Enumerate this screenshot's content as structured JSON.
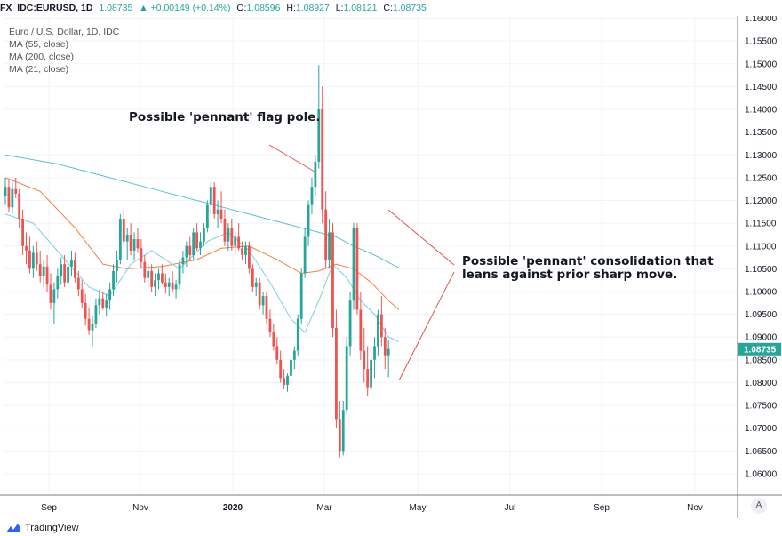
{
  "header": {
    "symbol": "FX_IDC:EURUSD, 1D",
    "last": "1.08735",
    "change": "▲ +0.00149 (+0.14%)",
    "o_label": "O:",
    "o_value": "1.08596",
    "h_label": "H:",
    "h_value": "1.08927",
    "l_label": "L:",
    "l_value": "1.08121",
    "c_label": "C:",
    "c_value": "1.08735"
  },
  "legend": {
    "title": "Euro / U.S. Dollar, 1D, IDC",
    "ma55": "MA (55, close)",
    "ma200": "MA (200, close)",
    "ma21": "MA (21, close)"
  },
  "annotations": {
    "flag_pole": "Possible 'pennant' flag pole.",
    "consolidation": "Possible 'pennant' consolidation that\nleans against prior sharp move."
  },
  "brand": "TradingView",
  "auto_label": "A",
  "colors": {
    "up": "#26a69a",
    "down": "#ef5350",
    "ma55": "#f0803c",
    "ma200": "#5bc0cf",
    "ma21": "#7ecfe0",
    "annotation_line": "#e65050",
    "price_tag": "#26a69a"
  },
  "chart_data": {
    "type": "candlestick",
    "price_axis": {
      "ticks": [
        "1.16000",
        "1.15500",
        "1.15000",
        "1.14500",
        "1.14000",
        "1.13500",
        "1.13000",
        "1.12500",
        "1.12000",
        "1.11500",
        "1.11000",
        "1.10500",
        "1.10000",
        "1.09500",
        "1.09000",
        "1.08500",
        "1.08000",
        "1.07500",
        "1.07000",
        "1.06500",
        "1.06000"
      ],
      "ylim": [
        1.0555,
        1.1605
      ],
      "last_price": "1.08735"
    },
    "time_axis": {
      "labels": [
        "Sep",
        "Nov",
        "2020",
        "Mar",
        "May",
        "Jul",
        "Sep",
        "Nov"
      ],
      "bold": [
        "2020"
      ]
    },
    "candles": [
      [
        1.121,
        1.125,
        1.119,
        1.123
      ],
      [
        1.123,
        1.1245,
        1.1175,
        1.1185
      ],
      [
        1.1185,
        1.124,
        1.117,
        1.1225
      ],
      [
        1.1225,
        1.125,
        1.1205,
        1.1215
      ],
      [
        1.1215,
        1.1225,
        1.114,
        1.116
      ],
      [
        1.116,
        1.118,
        1.108,
        1.11
      ],
      [
        1.11,
        1.113,
        1.106,
        1.109
      ],
      [
        1.109,
        1.112,
        1.104,
        1.105
      ],
      [
        1.105,
        1.11,
        1.103,
        1.1085
      ],
      [
        1.1085,
        1.111,
        1.1045,
        1.106
      ],
      [
        1.106,
        1.109,
        1.102,
        1.1035
      ],
      [
        1.1035,
        1.107,
        1.101,
        1.1055
      ],
      [
        1.1055,
        1.108,
        1.1,
        1.1015
      ],
      [
        1.1015,
        1.104,
        1.096,
        1.0975
      ],
      [
        1.0975,
        1.102,
        1.093,
        1.1005
      ],
      [
        1.1005,
        1.105,
        1.0985,
        1.1035
      ],
      [
        1.1035,
        1.1075,
        1.1015,
        1.106
      ],
      [
        1.106,
        1.108,
        1.101,
        1.102
      ],
      [
        1.102,
        1.107,
        1.1005,
        1.1055
      ],
      [
        1.1055,
        1.109,
        1.1035,
        1.107
      ],
      [
        1.107,
        1.1085,
        1.102,
        1.103
      ],
      [
        1.103,
        1.1045,
        1.099,
        1.1005
      ],
      [
        1.1005,
        1.1025,
        1.0965,
        1.0975
      ],
      [
        1.0975,
        1.0995,
        1.0925,
        1.094
      ],
      [
        1.094,
        1.0965,
        1.0905,
        1.0915
      ],
      [
        1.0915,
        1.0945,
        1.088,
        1.093
      ],
      [
        1.093,
        1.0985,
        1.092,
        1.097
      ],
      [
        1.097,
        1.1005,
        1.095,
        1.0985
      ],
      [
        1.0985,
        1.1,
        1.096,
        1.0965
      ],
      [
        1.0965,
        1.0995,
        1.0945,
        1.098
      ],
      [
        1.098,
        1.102,
        1.096,
        1.1005
      ],
      [
        1.1005,
        1.106,
        1.099,
        1.1045
      ],
      [
        1.1045,
        1.109,
        1.102,
        1.107
      ],
      [
        1.107,
        1.117,
        1.106,
        1.116
      ],
      [
        1.116,
        1.118,
        1.11,
        1.111
      ],
      [
        1.111,
        1.114,
        1.107,
        1.1125
      ],
      [
        1.1125,
        1.115,
        1.108,
        1.109
      ],
      [
        1.109,
        1.113,
        1.107,
        1.1115
      ],
      [
        1.1115,
        1.114,
        1.1085,
        1.1095
      ],
      [
        1.1095,
        1.1115,
        1.105,
        1.1065
      ],
      [
        1.1065,
        1.108,
        1.102,
        1.103
      ],
      [
        1.103,
        1.106,
        1.101,
        1.1045
      ],
      [
        1.1045,
        1.106,
        1.1,
        1.101
      ],
      [
        1.101,
        1.104,
        1.099,
        1.1025
      ],
      [
        1.1025,
        1.105,
        1.1005,
        1.104
      ],
      [
        1.104,
        1.106,
        1.1015,
        1.102
      ],
      [
        1.102,
        1.104,
        1.0995,
        1.101
      ],
      [
        1.101,
        1.103,
        1.099,
        1.102
      ],
      [
        1.102,
        1.1045,
        1.1,
        1.1005
      ],
      [
        1.1005,
        1.1025,
        1.0985,
        1.1015
      ],
      [
        1.1015,
        1.107,
        1.1005,
        1.106
      ],
      [
        1.106,
        1.109,
        1.104,
        1.1075
      ],
      [
        1.1075,
        1.111,
        1.1055,
        1.11
      ],
      [
        1.11,
        1.112,
        1.107,
        1.108
      ],
      [
        1.108,
        1.114,
        1.107,
        1.113
      ],
      [
        1.113,
        1.115,
        1.109,
        1.1095
      ],
      [
        1.1095,
        1.113,
        1.108,
        1.111
      ],
      [
        1.111,
        1.115,
        1.11,
        1.114
      ],
      [
        1.114,
        1.12,
        1.113,
        1.119
      ],
      [
        1.119,
        1.124,
        1.117,
        1.123
      ],
      [
        1.123,
        1.124,
        1.116,
        1.117
      ],
      [
        1.117,
        1.12,
        1.114,
        1.118
      ],
      [
        1.118,
        1.122,
        1.115,
        1.116
      ],
      [
        1.116,
        1.118,
        1.11,
        1.111
      ],
      [
        1.111,
        1.115,
        1.109,
        1.114
      ],
      [
        1.114,
        1.116,
        1.109,
        1.11
      ],
      [
        1.11,
        1.113,
        1.108,
        1.112
      ],
      [
        1.112,
        1.115,
        1.109,
        1.1095
      ],
      [
        1.1095,
        1.111,
        1.107,
        1.108
      ],
      [
        1.108,
        1.111,
        1.106,
        1.11
      ],
      [
        1.11,
        1.111,
        1.104,
        1.105
      ],
      [
        1.105,
        1.106,
        1.1,
        1.101
      ],
      [
        1.101,
        1.103,
        1.099,
        1.102
      ],
      [
        1.102,
        1.103,
        1.096,
        1.097
      ],
      [
        1.097,
        1.1,
        1.095,
        1.099
      ],
      [
        1.099,
        1.1,
        1.093,
        1.094
      ],
      [
        1.094,
        1.096,
        1.09,
        1.091
      ],
      [
        1.091,
        1.093,
        1.087,
        1.088
      ],
      [
        1.088,
        1.09,
        1.084,
        1.085
      ],
      [
        1.085,
        1.087,
        1.08,
        1.081
      ],
      [
        1.081,
        1.083,
        1.0785,
        1.0795
      ],
      [
        1.0795,
        1.082,
        1.078,
        1.0815
      ],
      [
        1.0815,
        1.086,
        1.08,
        1.085
      ],
      [
        1.085,
        1.088,
        1.083,
        1.087
      ],
      [
        1.087,
        1.095,
        1.086,
        1.094
      ],
      [
        1.094,
        1.105,
        1.093,
        1.104
      ],
      [
        1.104,
        1.114,
        1.103,
        1.112
      ],
      [
        1.112,
        1.12,
        1.11,
        1.119
      ],
      [
        1.119,
        1.125,
        1.117,
        1.123
      ],
      [
        1.123,
        1.13,
        1.121,
        1.1285
      ],
      [
        1.1285,
        1.1497,
        1.127,
        1.14
      ],
      [
        1.14,
        1.145,
        1.115,
        1.118
      ],
      [
        1.118,
        1.122,
        1.105,
        1.107
      ],
      [
        1.107,
        1.116,
        1.105,
        1.113
      ],
      [
        1.113,
        1.115,
        1.09,
        1.092
      ],
      [
        1.092,
        1.096,
        1.07,
        1.072
      ],
      [
        1.072,
        1.076,
        1.0636,
        1.065
      ],
      [
        1.065,
        1.076,
        1.064,
        1.074
      ],
      [
        1.074,
        1.09,
        1.073,
        1.088
      ],
      [
        1.088,
        1.1,
        1.086,
        1.098
      ],
      [
        1.098,
        1.115,
        1.096,
        1.114
      ],
      [
        1.114,
        1.115,
        1.095,
        1.096
      ],
      [
        1.096,
        1.1,
        1.085,
        1.087
      ],
      [
        1.087,
        1.092,
        1.08,
        1.083
      ],
      [
        1.083,
        1.088,
        1.077,
        1.079
      ],
      [
        1.079,
        1.086,
        1.078,
        1.085
      ],
      [
        1.085,
        1.09,
        1.081,
        1.088
      ],
      [
        1.088,
        1.096,
        1.086,
        1.095
      ],
      [
        1.095,
        1.099,
        1.088,
        1.09
      ],
      [
        1.09,
        1.092,
        1.083,
        1.086
      ],
      [
        1.086,
        1.0893,
        1.0812,
        1.0874
      ]
    ],
    "ma_lines": [
      {
        "name": "MA (200, close)",
        "points": [
          [
            0,
            1.13
          ],
          [
            15,
            1.128
          ],
          [
            30,
            1.125
          ],
          [
            45,
            1.122
          ],
          [
            60,
            1.119
          ],
          [
            70,
            1.117
          ],
          [
            80,
            1.115
          ],
          [
            85,
            1.114
          ],
          [
            90,
            1.113
          ],
          [
            95,
            1.112
          ],
          [
            100,
            1.11
          ],
          [
            106,
            1.108
          ],
          [
            111,
            1.106
          ],
          [
            113,
            1.1052
          ]
        ]
      },
      {
        "name": "MA (55, close)",
        "points": [
          [
            0,
            1.125
          ],
          [
            10,
            1.122
          ],
          [
            20,
            1.114
          ],
          [
            28,
            1.106
          ],
          [
            35,
            1.105
          ],
          [
            45,
            1.1055
          ],
          [
            55,
            1.107
          ],
          [
            62,
            1.1095
          ],
          [
            70,
            1.11
          ],
          [
            78,
            1.107
          ],
          [
            85,
            1.104
          ],
          [
            90,
            1.1045
          ],
          [
            95,
            1.106
          ],
          [
            100,
            1.105
          ],
          [
            105,
            1.102
          ],
          [
            110,
            1.098
          ],
          [
            113,
            1.096
          ]
        ]
      },
      {
        "name": "MA (21, close)",
        "points": [
          [
            0,
            1.117
          ],
          [
            8,
            1.115
          ],
          [
            16,
            1.108
          ],
          [
            24,
            1.101
          ],
          [
            30,
            1.099
          ],
          [
            36,
            1.106
          ],
          [
            42,
            1.109
          ],
          [
            50,
            1.105
          ],
          [
            58,
            1.111
          ],
          [
            64,
            1.113
          ],
          [
            70,
            1.109
          ],
          [
            76,
            1.102
          ],
          [
            82,
            1.094
          ],
          [
            86,
            1.091
          ],
          [
            90,
            1.098
          ],
          [
            94,
            1.106
          ],
          [
            98,
            1.103
          ],
          [
            102,
            1.098
          ],
          [
            106,
            1.095
          ],
          [
            110,
            1.09
          ],
          [
            113,
            1.089
          ]
        ]
      }
    ]
  }
}
